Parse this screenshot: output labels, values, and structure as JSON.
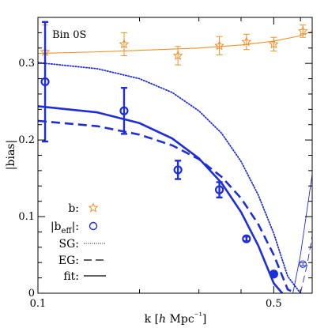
{
  "chart_data": {
    "type": "scatter",
    "annotation": "Bin 0S",
    "xlabel": "k [h Mpc⁻¹]",
    "ylabel": "|bias|",
    "xscale": "log",
    "xlim": [
      0.1,
      0.65
    ],
    "ylim": [
      0,
      0.36
    ],
    "x_ticks": [
      0.1,
      0.5
    ],
    "y_ticks": [
      0,
      0.1,
      0.2,
      0.3
    ],
    "x_tick_labels": [
      "0.1",
      "0.5"
    ],
    "y_tick_labels": [
      "0",
      "0.1",
      "0.2",
      "0.3"
    ],
    "colors": {
      "orange": "#f0902a",
      "blue": "#1f2fd6",
      "black": "#000000"
    },
    "series": [
      {
        "name": "b:",
        "kind": "points",
        "marker": "star",
        "color": "#f0902a",
        "x": [
          0.105,
          0.18,
          0.26,
          0.345,
          0.415,
          0.5,
          0.61
        ],
        "y": [
          0.315,
          0.325,
          0.31,
          0.323,
          0.328,
          0.325,
          0.342
        ],
        "yerr": [
          0.035,
          0.015,
          0.012,
          0.012,
          0.01,
          0.009,
          0.008
        ]
      },
      {
        "name": "|b_eff|:",
        "kind": "points",
        "marker": "circle",
        "color": "#1f2fd6",
        "x": [
          0.105,
          0.18,
          0.26,
          0.345,
          0.415,
          0.5,
          0.61
        ],
        "y": [
          0.276,
          0.238,
          0.161,
          0.135,
          0.071,
          0.025,
          0.038
        ],
        "yerr": [
          0.078,
          0.03,
          0.012,
          0.01,
          0.003,
          0.002,
          0.002
        ]
      },
      {
        "name": "b fit",
        "kind": "line",
        "style": "solid",
        "color": "#f0902a",
        "x": [
          0.1,
          0.15,
          0.2,
          0.3,
          0.4,
          0.5,
          0.6,
          0.65
        ],
        "y": [
          0.313,
          0.315,
          0.317,
          0.32,
          0.324,
          0.329,
          0.336,
          0.342
        ]
      },
      {
        "name": "SG:",
        "kind": "line",
        "style": "dotted",
        "color": "#1f2fd6",
        "x": [
          0.1,
          0.15,
          0.2,
          0.25,
          0.3,
          0.35,
          0.4,
          0.45,
          0.5,
          0.55,
          0.6
        ],
        "y": [
          0.301,
          0.293,
          0.28,
          0.262,
          0.238,
          0.209,
          0.172,
          0.128,
          0.078,
          0.022,
          0.0
        ]
      },
      {
        "name": "EG:",
        "kind": "line",
        "style": "dashed",
        "color": "#1f2fd6",
        "x": [
          0.1,
          0.15,
          0.2,
          0.25,
          0.3,
          0.35,
          0.4,
          0.45,
          0.5,
          0.55,
          0.58
        ],
        "y": [
          0.225,
          0.218,
          0.207,
          0.193,
          0.175,
          0.152,
          0.124,
          0.09,
          0.05,
          0.005,
          0.0
        ]
      },
      {
        "name": "fit:",
        "kind": "line",
        "style": "solid",
        "color": "#1f2fd6",
        "x": [
          0.1,
          0.15,
          0.2,
          0.25,
          0.3,
          0.35,
          0.4,
          0.45,
          0.5,
          0.53
        ],
        "y": [
          0.244,
          0.236,
          0.222,
          0.202,
          0.176,
          0.144,
          0.106,
          0.062,
          0.013,
          0.0
        ]
      },
      {
        "name": "fit rise",
        "kind": "line",
        "style": "solid-thin",
        "color": "#1f2fd6",
        "x": [
          0.57,
          0.6,
          0.65
        ],
        "y": [
          0.0,
          0.05,
          0.155
        ]
      },
      {
        "name": "EG rise",
        "kind": "line",
        "style": "dashed-thin",
        "color": "#1f2fd6",
        "x": [
          0.6,
          0.63,
          0.65
        ],
        "y": [
          0.0,
          0.04,
          0.075
        ]
      }
    ],
    "legend": {
      "placement": "bottom-left",
      "entries": [
        {
          "label": "b:",
          "symbol": "star",
          "color": "#f0902a"
        },
        {
          "label": "|b",
          "sub": "eff",
          "suffix": "|:",
          "symbol": "circle",
          "color": "#1f2fd6"
        },
        {
          "label": "SG:",
          "symbol": "dotted",
          "color": "#000000"
        },
        {
          "label": "EG:",
          "symbol": "dashed",
          "color": "#000000"
        },
        {
          "label": "fit:",
          "symbol": "solid",
          "color": "#000000"
        }
      ]
    }
  }
}
